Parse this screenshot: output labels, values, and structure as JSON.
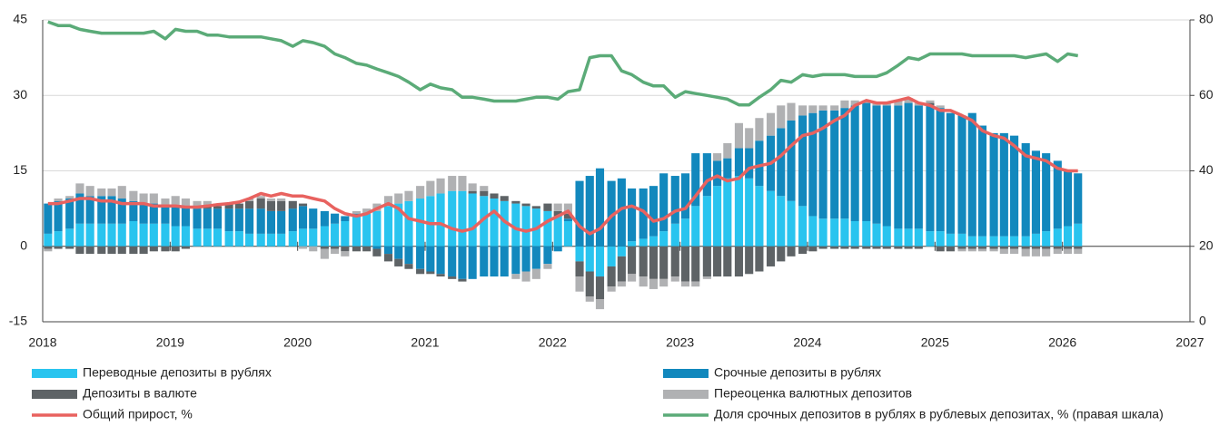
{
  "chart_data": {
    "type": "bar-line",
    "x": [
      2018,
      2018.08,
      2018.17,
      2018.25,
      2018.33,
      2018.42,
      2018.5,
      2018.58,
      2018.67,
      2018.75,
      2018.83,
      2018.92,
      2019,
      2019.08,
      2019.17,
      2019.25,
      2019.33,
      2019.42,
      2019.5,
      2019.58,
      2019.67,
      2019.75,
      2019.83,
      2019.92,
      2020,
      2020.08,
      2020.17,
      2020.25,
      2020.33,
      2020.42,
      2020.5,
      2020.58,
      2020.67,
      2020.75,
      2020.83,
      2020.92,
      2021,
      2021.08,
      2021.17,
      2021.25,
      2021.33,
      2021.42,
      2021.5,
      2021.58,
      2021.67,
      2021.75,
      2021.83,
      2021.92,
      2022,
      2022.08,
      2022.17,
      2022.25,
      2022.33,
      2022.42,
      2022.5,
      2022.58,
      2022.67,
      2022.75,
      2022.83,
      2022.92,
      2023,
      2023.08,
      2023.17,
      2023.25,
      2023.33,
      2023.42,
      2023.5,
      2023.58,
      2023.67,
      2023.75,
      2023.83,
      2023.92,
      2024,
      2024.08,
      2024.17,
      2024.25,
      2024.33,
      2024.42,
      2024.5,
      2024.58,
      2024.67,
      2024.75,
      2024.83,
      2024.92,
      2025,
      2025.08,
      2025.17,
      2025.25,
      2025.33,
      2025.42,
      2025.5,
      2025.58,
      2025.67,
      2025.75,
      2025.83,
      2025.92,
      2026,
      2026.08
    ],
    "series": [
      {
        "name": "Переводные депозиты в рублях",
        "color": "#29c4ef",
        "kind": "bar",
        "values": [
          2.5,
          3,
          3.5,
          4.5,
          4.5,
          4.5,
          4.5,
          4.5,
          5,
          4.5,
          4.5,
          4.5,
          4,
          4,
          3.5,
          3.5,
          3.5,
          3,
          3,
          2.5,
          2.5,
          2.5,
          2.5,
          3,
          3.5,
          3.5,
          4,
          4.5,
          5,
          6,
          6.5,
          7,
          8,
          8.5,
          9,
          9.5,
          10,
          10.5,
          11,
          11,
          10.5,
          10,
          9.5,
          9,
          8.5,
          8,
          7.5,
          7,
          6,
          5,
          -3,
          -5,
          -6,
          -4,
          -2,
          1,
          1.5,
          2,
          3,
          4.5,
          5.5,
          8,
          10,
          12,
          13.5,
          14,
          13.5,
          12,
          11,
          10,
          9,
          8,
          6,
          5.5,
          5.5,
          5.5,
          5,
          5,
          4.5,
          4,
          3.5,
          3.5,
          3.5,
          3,
          3,
          2.5,
          2.5,
          2,
          2,
          2,
          2,
          2,
          2,
          2.5,
          3,
          3.5,
          4,
          4.5
        ]
      },
      {
        "name": "Срочные депозиты в рублях",
        "color": "#1288bd",
        "kind": "bar",
        "values": [
          6,
          6,
          6,
          6,
          5.5,
          5.5,
          5.5,
          5,
          4,
          4,
          4,
          3.5,
          4,
          4,
          4,
          4,
          4,
          4.5,
          4.5,
          5,
          5,
          4.5,
          4.5,
          4.5,
          4.5,
          4,
          3,
          2,
          1,
          0.5,
          0,
          -0.5,
          -1.5,
          -2.5,
          -3.5,
          -4.5,
          -5,
          -5.5,
          -6,
          -6.5,
          -6.5,
          -6,
          -6,
          -6,
          -5.5,
          -5,
          -4.5,
          -3.5,
          -1,
          0.5,
          13,
          14,
          15.5,
          13,
          13.5,
          10.5,
          10,
          10,
          11.5,
          9.5,
          9,
          10.5,
          8.5,
          5,
          4,
          5.5,
          6,
          9,
          11,
          13.5,
          16,
          18,
          20.5,
          21.5,
          21.5,
          22,
          23,
          23.5,
          23.5,
          24,
          24.5,
          25,
          24.5,
          25,
          24.5,
          24,
          23.5,
          24.5,
          22,
          20.5,
          20.5,
          20,
          18.5,
          16.5,
          15.5,
          13.5,
          11,
          10
        ]
      },
      {
        "name": "Депозиты в валюте",
        "color": "#5e6366",
        "kind": "bar",
        "values": [
          -0.5,
          -0.5,
          -0.5,
          -1.5,
          -1.5,
          -1.5,
          -1.5,
          -1.5,
          -1.5,
          -1.5,
          -1,
          -1,
          -1,
          -0.5,
          0.5,
          0.5,
          0.5,
          1,
          1,
          1.5,
          2,
          2,
          2,
          1.5,
          0.5,
          0,
          -0.5,
          -0.5,
          -1,
          -1,
          -1,
          -1.5,
          -1.5,
          -1.5,
          -1,
          -1,
          -0.5,
          -0.5,
          -0.5,
          -0.5,
          0.5,
          1,
          1,
          1,
          0.5,
          0.5,
          0.5,
          1.5,
          1,
          1,
          -3,
          -5,
          -4.5,
          -4,
          -5,
          -5.5,
          -6,
          -6.5,
          -6.5,
          -6,
          -7,
          -7,
          -6,
          -6,
          -6,
          -6,
          -5.5,
          -5,
          -4,
          -3,
          -2,
          -1.5,
          -1,
          -0.5,
          -0.5,
          -0.5,
          -0.5,
          -0.5,
          -0.5,
          -0.5,
          -0.5,
          -0.5,
          -0.5,
          0.5,
          -1,
          -1,
          -0.5,
          -0.5,
          -0.5,
          -0.5,
          -0.5,
          -0.5,
          -0.5,
          -0.5,
          -0.5,
          -0.5,
          -0.5,
          -0.5
        ]
      },
      {
        "name": "Переоценка валютных депозитов",
        "color": "#b0b1b3",
        "kind": "bar",
        "values": [
          -0.5,
          0.5,
          0.5,
          2,
          2,
          1.5,
          1.5,
          2.5,
          2,
          2,
          2,
          1.5,
          2,
          1.5,
          1,
          1,
          0.5,
          0,
          0,
          0.5,
          0.5,
          0.5,
          0.5,
          0,
          -0.5,
          -1,
          -2,
          -1,
          -1,
          0.5,
          1,
          1.5,
          2,
          2,
          2,
          2.5,
          3,
          3,
          3,
          3,
          1.5,
          1,
          0,
          0,
          -1,
          -2,
          -2,
          -1,
          1.5,
          2,
          -3,
          -1,
          -2,
          -1,
          -1,
          -1.5,
          -2,
          -2,
          -1.5,
          -1,
          -1,
          -1,
          -0.5,
          1.5,
          3,
          5,
          4,
          4.5,
          4.5,
          4.5,
          3.5,
          2,
          1.5,
          1,
          1,
          1.5,
          1,
          0.5,
          0.5,
          0.5,
          1,
          1,
          0.5,
          0.5,
          0.5,
          0,
          -0.5,
          -0.5,
          -0.5,
          -0.5,
          -1,
          -1,
          -1.5,
          -1.5,
          -1.5,
          -1,
          -1,
          -1
        ]
      },
      {
        "name": "Общий прирост, %",
        "color": "#e8625f",
        "kind": "line",
        "values": [
          8.5,
          8.5,
          9,
          9.5,
          9.5,
          9,
          9,
          8.5,
          8.5,
          8.5,
          8,
          8,
          8,
          7.8,
          7.8,
          8,
          8.3,
          8.5,
          8.8,
          9.5,
          10.5,
          10,
          10.5,
          10,
          10,
          9.5,
          9,
          7.5,
          6.5,
          6,
          6.5,
          7.5,
          8.5,
          7.5,
          5.5,
          5,
          4.5,
          4.5,
          3.5,
          3,
          3.5,
          5.5,
          7,
          5,
          3.5,
          3,
          3.5,
          5,
          6,
          7,
          4,
          2.5,
          3.5,
          6,
          7.5,
          8,
          7,
          5,
          5.5,
          7,
          7.5,
          10,
          13,
          14,
          13,
          13.5,
          15.5,
          16,
          16.5,
          18,
          20,
          22,
          22.5,
          23.5,
          25,
          26,
          28,
          29,
          28.5,
          28.5,
          29,
          29.5,
          28.5,
          28,
          27,
          27,
          26,
          25,
          23,
          22,
          21.5,
          20,
          18,
          17.5,
          17,
          15.5,
          15,
          15
        ]
      },
      {
        "name": "Доля срочных депозитов в рублях в рублевых депозитах, % (правая шкала)",
        "color": "#5bab78",
        "kind": "line",
        "axis": "y2",
        "values": [
          79.5,
          78.5,
          78.5,
          77.5,
          77,
          76.5,
          76.5,
          76.5,
          76.5,
          76.5,
          77,
          75,
          77.5,
          77,
          77,
          76,
          76,
          75.5,
          75.5,
          75.5,
          75.5,
          75,
          74.5,
          73,
          74.5,
          74,
          73,
          71,
          70,
          68.5,
          68,
          67,
          66,
          65,
          63.5,
          61.5,
          63,
          62,
          61.5,
          59.5,
          59.5,
          59,
          58.5,
          58.5,
          58.5,
          59,
          59.5,
          59.5,
          59,
          61,
          61.5,
          70,
          70.5,
          70.5,
          66.5,
          65.5,
          63.5,
          62.5,
          62.5,
          59.5,
          61,
          60.5,
          60,
          59.5,
          59,
          57.5,
          57.5,
          59.5,
          61.5,
          64,
          63.5,
          65.5,
          65,
          65.5,
          65.5,
          65.5,
          65,
          65,
          65,
          66,
          68,
          70,
          69.5,
          71,
          71,
          71,
          71,
          70.5,
          70.5,
          70.5,
          70.5,
          70.5,
          70,
          70.5,
          71,
          69,
          71,
          70.5
        ]
      }
    ],
    "xlim": [
      2018,
      2027
    ],
    "xticks": [
      2018,
      2019,
      2020,
      2021,
      2022,
      2023,
      2024,
      2025,
      2026,
      2027
    ],
    "ylim": [
      -15,
      45
    ],
    "yticks": [
      -15,
      0,
      15,
      30,
      45
    ],
    "y2lim": [
      0,
      80
    ],
    "y2ticks": [
      0,
      20,
      40,
      60,
      80
    ],
    "grid": true
  }
}
